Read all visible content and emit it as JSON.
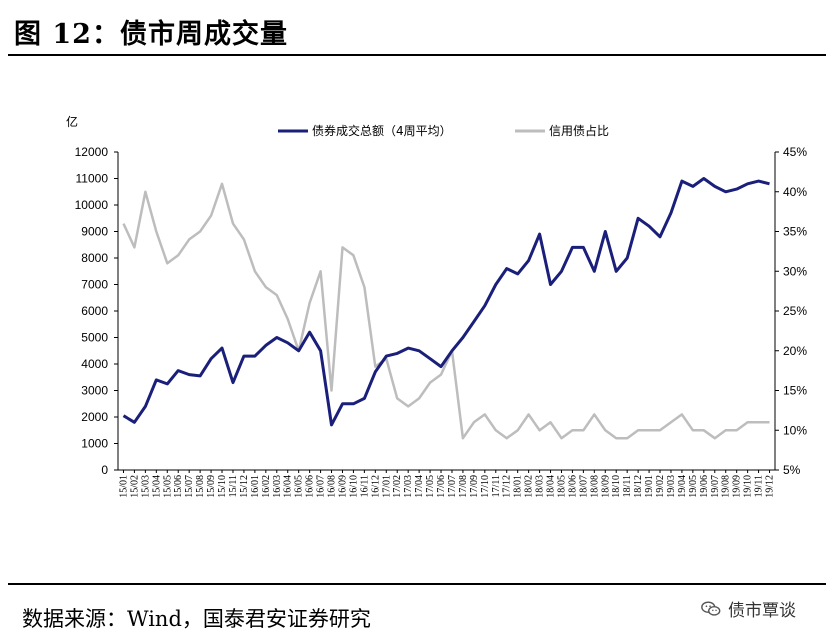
{
  "header": {
    "title": "图 12：债市周成交量"
  },
  "footer": {
    "source": "数据来源：Wind，国泰君安证券研究",
    "watermark": "债市覃谈",
    "watermark_icon": "wechat-icon"
  },
  "chart_data": {
    "type": "line",
    "y_unit_label": "亿",
    "ylim_left": [
      0,
      12000
    ],
    "yticks_left": [
      0,
      1000,
      2000,
      3000,
      4000,
      5000,
      6000,
      7000,
      8000,
      9000,
      10000,
      11000,
      12000
    ],
    "ylim_right": [
      0.05,
      0.45
    ],
    "yticks_right": [
      "5%",
      "10%",
      "15%",
      "20%",
      "25%",
      "30%",
      "35%",
      "40%",
      "45%"
    ],
    "legend_position": "top-center",
    "grid": false,
    "x_start": "2015-01",
    "x_end": "2019-12",
    "x_tick_labels": [
      "15/01",
      "15/02",
      "15/03",
      "15/04",
      "15/05",
      "15/06",
      "15/07",
      "15/08",
      "15/09",
      "15/10",
      "15/11",
      "15/12",
      "16/01",
      "16/02",
      "16/03",
      "16/04",
      "16/05",
      "16/06",
      "16/07",
      "16/08",
      "16/09",
      "16/10",
      "16/11",
      "16/12",
      "17/01",
      "17/02",
      "17/03",
      "17/04",
      "17/05",
      "17/06",
      "17/07",
      "17/08",
      "17/09",
      "17/10",
      "17/11",
      "17/12",
      "18/01",
      "18/02",
      "18/03",
      "18/04",
      "18/05",
      "18/06",
      "18/07",
      "18/08",
      "18/09",
      "18/10",
      "18/11",
      "18/12",
      "19/01",
      "19/02",
      "19/03",
      "19/04",
      "19/05",
      "19/06",
      "19/07",
      "19/08",
      "19/09",
      "19/10",
      "19/11",
      "19/12"
    ],
    "series": [
      {
        "name": "债券成交总额（4周平均）",
        "axis": "left",
        "color": "#1a1f7a",
        "x": [
          0,
          1,
          2,
          3,
          4,
          5,
          6,
          7,
          8,
          9,
          10,
          11,
          12,
          13,
          14,
          15,
          16,
          17,
          18,
          19,
          20,
          21,
          22,
          23,
          24,
          25,
          26,
          27,
          28,
          29,
          30,
          31,
          32,
          33,
          34,
          35,
          36,
          37,
          38,
          39,
          40,
          41,
          42,
          43,
          44,
          45,
          46,
          47,
          48,
          49,
          50,
          51,
          52,
          53,
          54,
          55,
          56,
          57,
          58,
          59
        ],
        "values": [
          2050,
          1800,
          2400,
          3400,
          3250,
          3750,
          3600,
          3550,
          4200,
          4600,
          3300,
          4300,
          4300,
          4700,
          5000,
          4800,
          4500,
          5200,
          4500,
          1700,
          2500,
          2500,
          2700,
          3700,
          4300,
          4400,
          4600,
          4500,
          4200,
          3900,
          4500,
          5000,
          5600,
          6200,
          7000,
          7600,
          7400,
          7900,
          8900,
          7000,
          7500,
          8400,
          8400,
          7500,
          9000,
          7500,
          8000,
          9500,
          9200,
          8800,
          9700,
          10900,
          10700,
          11000,
          10700,
          10500,
          10600,
          10800,
          10900,
          10800
        ]
      },
      {
        "name": "信用债占比",
        "axis": "right",
        "color": "#bdbdbd",
        "x": [
          0,
          1,
          2,
          3,
          4,
          5,
          6,
          7,
          8,
          9,
          10,
          11,
          12,
          13,
          14,
          15,
          16,
          17,
          18,
          19,
          20,
          21,
          22,
          23,
          24,
          25,
          26,
          27,
          28,
          29,
          30,
          31,
          32,
          33,
          34,
          35,
          36,
          37,
          38,
          39,
          40,
          41,
          42,
          43,
          44,
          45,
          46,
          47,
          48,
          49,
          50,
          51,
          52,
          53,
          54,
          55,
          56,
          57,
          58,
          59
        ],
        "values": [
          0.36,
          0.33,
          0.4,
          0.35,
          0.31,
          0.32,
          0.34,
          0.35,
          0.37,
          0.41,
          0.36,
          0.34,
          0.3,
          0.28,
          0.27,
          0.24,
          0.2,
          0.26,
          0.3,
          0.15,
          0.33,
          0.32,
          0.28,
          0.18,
          0.19,
          0.14,
          0.13,
          0.14,
          0.16,
          0.17,
          0.2,
          0.09,
          0.11,
          0.12,
          0.1,
          0.09,
          0.1,
          0.12,
          0.1,
          0.11,
          0.09,
          0.1,
          0.1,
          0.12,
          0.1,
          0.09,
          0.09,
          0.1,
          0.1,
          0.1,
          0.11,
          0.12,
          0.1,
          0.1,
          0.09,
          0.1,
          0.1,
          0.11,
          0.11,
          0.11
        ]
      }
    ]
  }
}
